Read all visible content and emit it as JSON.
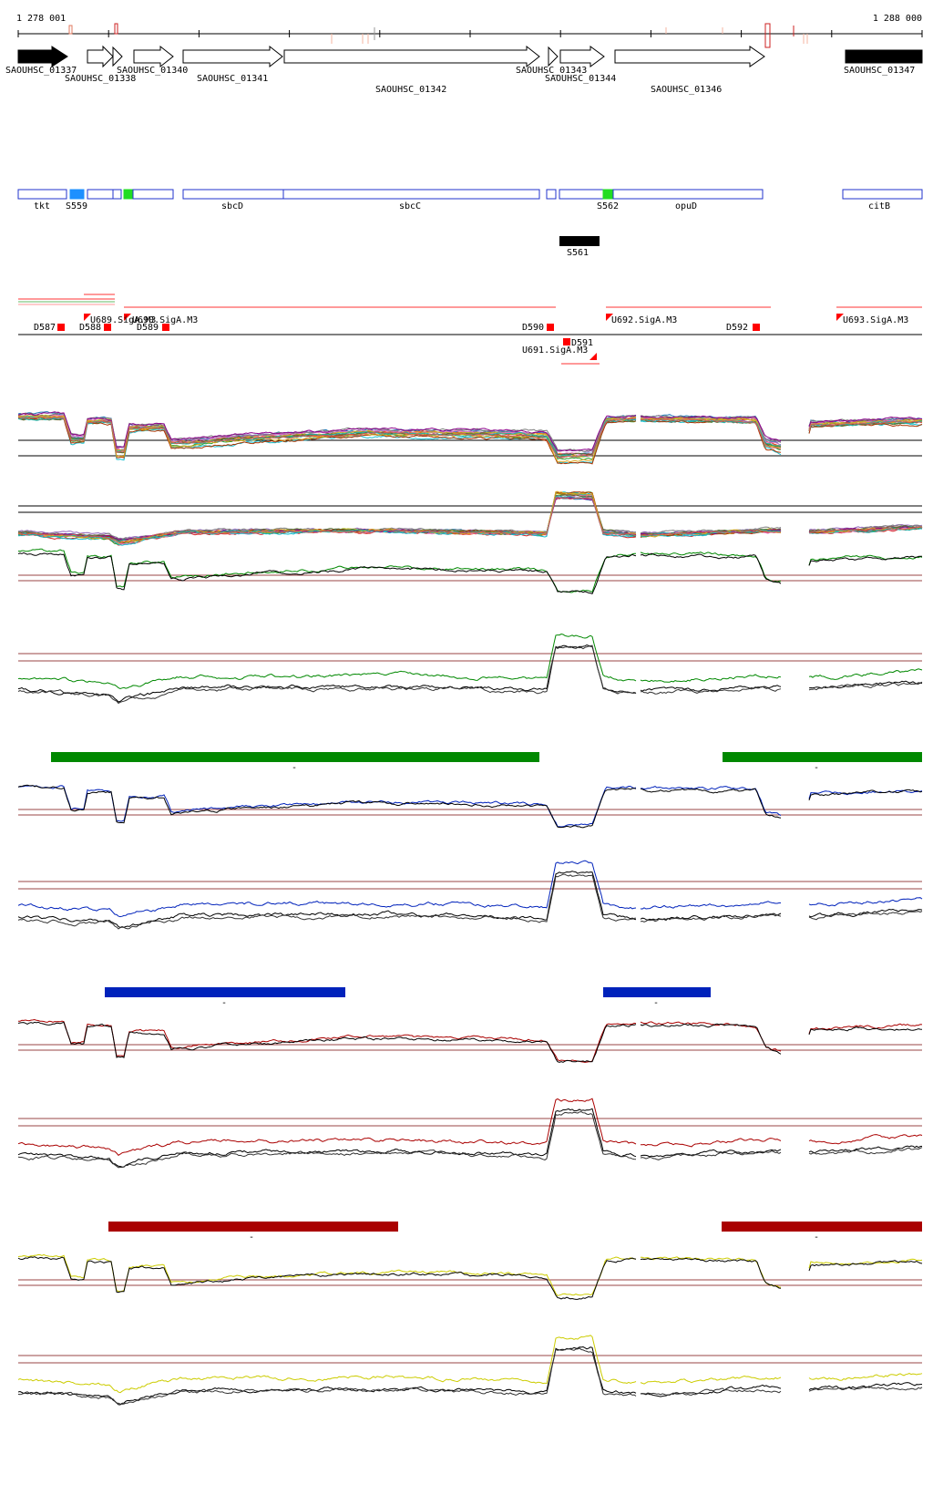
{
  "coords": {
    "start": "1 278 001",
    "end": "1 288 000"
  },
  "genes": [
    {
      "label": "SAOUHSC_01337"
    },
    {
      "label": "SAOUHSC_01338"
    },
    {
      "label": "SAOUHSC_01340"
    },
    {
      "label": "SAOUHSC_01341"
    },
    {
      "label": "SAOUHSC_01342"
    },
    {
      "label": "SAOUHSC_01343"
    },
    {
      "label": "SAOUHSC_01344"
    },
    {
      "label": "SAOUHSC_01346"
    },
    {
      "label": "SAOUHSC_01347"
    }
  ],
  "features": [
    {
      "label": "tkt"
    },
    {
      "label": "S559"
    },
    {
      "label": "sbcD"
    },
    {
      "label": "sbcC"
    },
    {
      "label": "S562"
    },
    {
      "label": "opuD"
    },
    {
      "label": "citB"
    },
    {
      "label": "S561"
    }
  ],
  "sites": [
    {
      "label": "D587"
    },
    {
      "label": "D588"
    },
    {
      "label": "U689.SigA.M3"
    },
    {
      "label": "U690.SigA.M3"
    },
    {
      "label": "D589"
    },
    {
      "label": "D590"
    },
    {
      "label": "D591"
    },
    {
      "label": "U691.SigA.M3"
    },
    {
      "label": "U692.SigA.M3"
    },
    {
      "label": "D592"
    },
    {
      "label": "U693.SigA.M3"
    }
  ],
  "condition_bars": [
    {
      "label": "-"
    },
    {
      "label": "-"
    },
    {
      "label": "-"
    },
    {
      "label": "-"
    },
    {
      "label": "-"
    },
    {
      "label": "-"
    }
  ],
  "colors": {
    "green": "#008800",
    "blue": "#0022bb",
    "red": "#aa0000",
    "yellow": "#cccc00",
    "ref": "#994444",
    "feature": "#2233cc",
    "site": "#ff0000",
    "palette": [
      "#d62728",
      "#2ca02c",
      "#1f77b4",
      "#ff7f0e",
      "#9467bd",
      "#8c564b",
      "#e377c2",
      "#7f7f7f",
      "#bcbd22",
      "#17becf",
      "#aa3300",
      "#556b2f",
      "#8b008b",
      "#daa520",
      "#20b2aa",
      "#cd5c5c"
    ]
  }
}
